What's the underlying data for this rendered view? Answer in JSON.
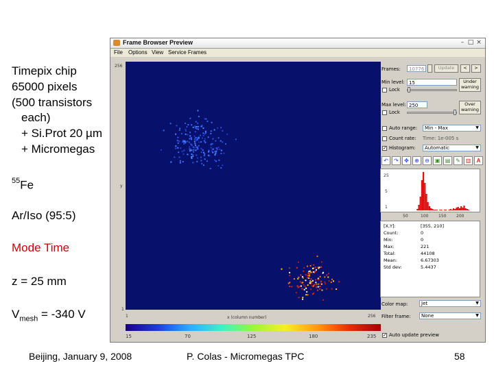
{
  "slide": {
    "line1": "Timepix chip",
    "line2": "65000 pixels",
    "line3": "(500 transistors",
    "line4": "each)",
    "line5": "+ Si.Prot 20 µm",
    "line6": "+ Micromegas",
    "iso_sup": "55",
    "iso_el": "Fe",
    "gas": "Ar/Iso (95:5)",
    "mode": "Mode Time",
    "z": "z = 25 mm",
    "vmesh_v": "V",
    "vmesh_sub": "mesh",
    "vmesh_val": " = -340 V"
  },
  "footer": {
    "left": "Beijing, January 9, 2008",
    "center": "P. Colas - Micromegas TPC",
    "page": "58"
  },
  "window": {
    "title": "Frame Browser Preview",
    "menu": [
      "File",
      "Options",
      "View",
      "Service Frames"
    ],
    "y_top": "256",
    "y_mid": "y",
    "y_bottom": "1",
    "x_left": "1",
    "x_mid": "x (column number)",
    "x_right": "256",
    "colorbar_ticks": [
      "15",
      "70",
      "125",
      "180",
      "235"
    ],
    "colors": {
      "plot_bg": "#07116b",
      "accent": "#ff2200"
    }
  },
  "panel": {
    "frames_label": "Frames:",
    "frames_value": "10776",
    "update_label": "Update",
    "prev_label": "<",
    "next_label": ">",
    "min_level_label": "Min level:",
    "min_level_value": "15",
    "under_line1": "Under",
    "under_line2": "warning",
    "lock_label": "Lock",
    "max_level_label": "Max level:",
    "max_level_value": "250",
    "over_line1": "Over",
    "over_line2": "warning",
    "autorange_label": "Auto range:",
    "autorange_value": "Min - Max",
    "countrate_label": "Count rate:",
    "countrate_value": "Time: 1e-005 s",
    "histogram_label": "Histogram:",
    "histogram_value": "Automatic",
    "hist_ticks": [
      "50",
      "100",
      "150",
      "200"
    ],
    "hist_y": [
      "25",
      "5",
      "1"
    ],
    "stats": [
      {
        "k": "[X,Y]:",
        "v": "[355, 210]"
      },
      {
        "k": "Count:",
        "v": "0"
      },
      {
        "k": "Min:",
        "v": "0"
      },
      {
        "k": "Max:",
        "v": "221"
      },
      {
        "k": "Total:",
        "v": "44108"
      },
      {
        "k": "Mean:",
        "v": "6.67303"
      },
      {
        "k": "Std dev:",
        "v": "5.4437"
      }
    ],
    "colormap_label": "Color map:",
    "colormap_value": "Jet",
    "filter_label": "Filter frame:",
    "filter_value": "None",
    "autoupdate_label": "Auto update preview"
  }
}
